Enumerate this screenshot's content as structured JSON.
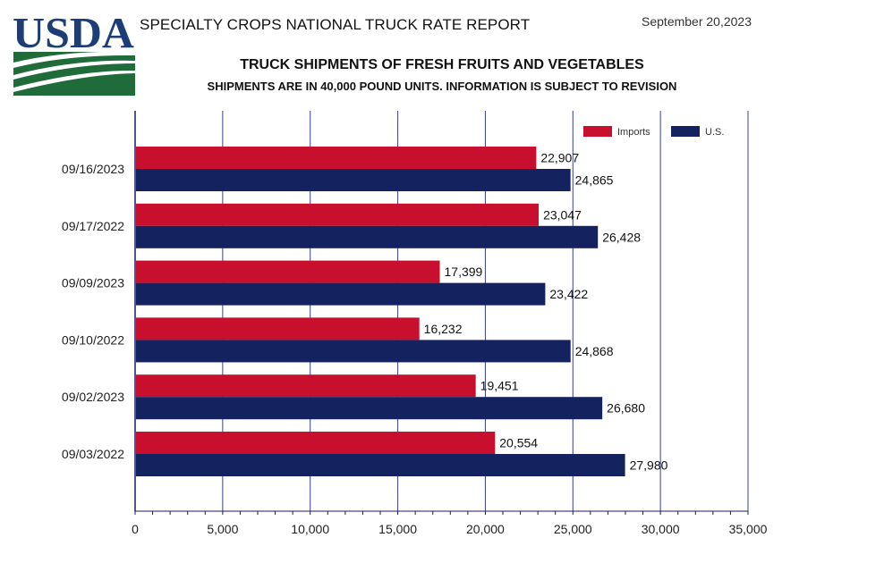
{
  "header": {
    "logo_text": "USDA",
    "report_title": "SPECIALTY CROPS NATIONAL TRUCK RATE REPORT",
    "report_date": "September 20,2023"
  },
  "chart_data": {
    "type": "bar",
    "orientation": "horizontal",
    "title": "TRUCK SHIPMENTS OF FRESH FRUITS AND VEGETABLES",
    "subtitle": "SHIPMENTS ARE IN 40,000 POUND UNITS. INFORMATION IS SUBJECT TO REVISION",
    "categories": [
      "09/16/2023",
      "09/17/2022",
      "09/09/2023",
      "09/10/2022",
      "09/02/2023",
      "09/03/2022"
    ],
    "series": [
      {
        "name": "Imports",
        "color": "#c8102e",
        "values": [
          22907,
          23047,
          17399,
          16232,
          19451,
          20554
        ],
        "labels": [
          "22,907",
          "23,047",
          "17,399",
          "16,232",
          "19,451",
          "20,554"
        ]
      },
      {
        "name": "U.S.",
        "color": "#14235f",
        "values": [
          24865,
          26428,
          23422,
          24868,
          26680,
          27980
        ],
        "labels": [
          "24,865",
          "26,428",
          "23,422",
          "24,868",
          "26,680",
          "27,980"
        ]
      }
    ],
    "xlim": [
      0,
      35000
    ],
    "xticks": [
      0,
      5000,
      10000,
      15000,
      20000,
      25000,
      30000,
      35000
    ],
    "xtick_labels": [
      "0",
      "5,000",
      "10,000",
      "15,000",
      "20,000",
      "25,000",
      "30,000",
      "35,000"
    ],
    "grid": "vertical",
    "legend": "top-right"
  }
}
